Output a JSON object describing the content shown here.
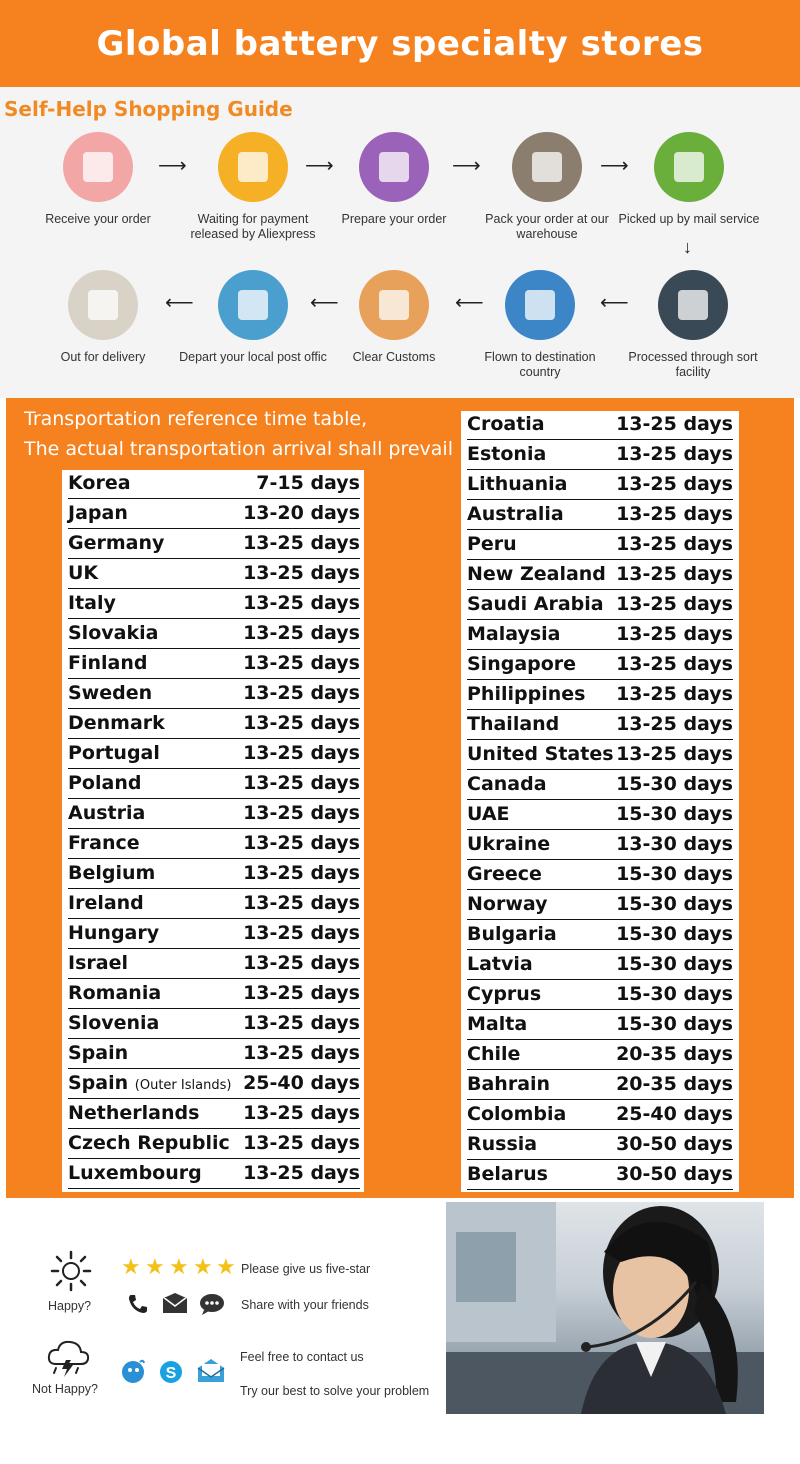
{
  "title": "Global battery specialty stores",
  "guide": {
    "heading": "Self-Help Shopping Guide",
    "row1": [
      {
        "label": "Receive your order",
        "icon": "cashier-icon",
        "color": "#f2a6a6"
      },
      {
        "label": "Waiting for payment released by Aliexpress",
        "icon": "money-bag-icon",
        "color": "#f5b025"
      },
      {
        "label": "Prepare your order",
        "icon": "printer-icon",
        "color": "#9a62b8"
      },
      {
        "label": "Pack your order at our warehouse",
        "icon": "package-icon",
        "color": "#8c7e6e"
      },
      {
        "label": "Picked up by mail service",
        "icon": "truck-icon",
        "color": "#6aaf3c"
      }
    ],
    "row2": [
      {
        "label": "Out for delivery",
        "icon": "parcel-icon",
        "color": "#d9d2c7"
      },
      {
        "label": "Depart your local post offic",
        "icon": "van-icon",
        "color": "#4b9fcf"
      },
      {
        "label": "Clear  Customs",
        "icon": "customs-officer-icon",
        "color": "#e8a15a"
      },
      {
        "label": "Flown to destination country",
        "icon": "airplane-icon",
        "color": "#3c86c8"
      },
      {
        "label": "Processed through sort facility",
        "icon": "globe-icon",
        "color": "#394956"
      }
    ]
  },
  "note": {
    "line1": "Transportation reference time table,",
    "line2": "The actual transportation arrival shall prevail"
  },
  "left_table": [
    {
      "country": "Korea",
      "days": "7-15 days"
    },
    {
      "country": "Japan",
      "days": "13-20 days"
    },
    {
      "country": "Germany",
      "days": "13-25 days"
    },
    {
      "country": "UK",
      "days": "13-25 days"
    },
    {
      "country": "Italy",
      "days": "13-25 days"
    },
    {
      "country": "Slovakia",
      "days": "13-25 days"
    },
    {
      "country": "Finland",
      "days": "13-25 days"
    },
    {
      "country": "Sweden",
      "days": "13-25 days"
    },
    {
      "country": "Denmark",
      "days": "13-25 days"
    },
    {
      "country": "Portugal",
      "days": "13-25 days"
    },
    {
      "country": "Poland",
      "days": "13-25 days"
    },
    {
      "country": "Austria",
      "days": "13-25 days"
    },
    {
      "country": "France",
      "days": "13-25 days"
    },
    {
      "country": "Belgium",
      "days": "13-25 days"
    },
    {
      "country": "Ireland",
      "days": "13-25 days"
    },
    {
      "country": "Hungary",
      "days": "13-25 days"
    },
    {
      "country": "Israel",
      "days": "13-25 days"
    },
    {
      "country": "Romania",
      "days": "13-25 days"
    },
    {
      "country": "Slovenia",
      "days": "13-25 days"
    },
    {
      "country": "Spain",
      "days": "13-25 days"
    },
    {
      "country": "Spain",
      "note": "(Outer Islands)",
      "days": "25-40 days"
    },
    {
      "country": "Netherlands",
      "days": "13-25 days"
    },
    {
      "country": "Czech Republic",
      "days": "13-25 days"
    },
    {
      "country": "Luxembourg",
      "days": "13-25 days"
    }
  ],
  "right_table": [
    {
      "country": "Croatia",
      "days": "13-25 days"
    },
    {
      "country": "Estonia",
      "days": "13-25 days"
    },
    {
      "country": "Lithuania",
      "days": "13-25 days"
    },
    {
      "country": "Australia",
      "days": "13-25 days"
    },
    {
      "country": "Peru",
      "days": "13-25 days"
    },
    {
      "country": "New Zealand",
      "days": "13-25 days"
    },
    {
      "country": "Saudi Arabia",
      "days": "13-25 days"
    },
    {
      "country": "Malaysia",
      "days": "13-25 days"
    },
    {
      "country": "Singapore",
      "days": "13-25 days"
    },
    {
      "country": "Philippines",
      "days": "13-25 days"
    },
    {
      "country": "Thailand",
      "days": "13-25 days"
    },
    {
      "country": "United States",
      "days": "13-25 days"
    },
    {
      "country": "Canada",
      "days": "15-30 days"
    },
    {
      "country": "UAE",
      "days": "15-30 days"
    },
    {
      "country": "Ukraine",
      "days": "13-30 days"
    },
    {
      "country": "Greece",
      "days": "15-30 days"
    },
    {
      "country": "Norway",
      "days": "15-30 days"
    },
    {
      "country": "Bulgaria",
      "days": "15-30 days"
    },
    {
      "country": "Latvia",
      "days": "15-30 days"
    },
    {
      "country": "Cyprus",
      "days": "15-30 days"
    },
    {
      "country": "Malta",
      "days": "15-30 days"
    },
    {
      "country": "Chile",
      "days": "20-35 days"
    },
    {
      "country": "Bahrain",
      "days": "20-35 days"
    },
    {
      "country": "Colombia",
      "days": "25-40 days"
    },
    {
      "country": "Russia",
      "days": "30-50 days"
    },
    {
      "country": "Belarus",
      "days": "30-50 days"
    }
  ],
  "feedback": {
    "happy_label": "Happy?",
    "not_happy_label": "Not Happy?",
    "five_star_text": "Please give us five-star",
    "share_text": "Share with your friends",
    "contact_text": "Feel free to contact us",
    "solve_text": "Try our best to solve your problem"
  }
}
